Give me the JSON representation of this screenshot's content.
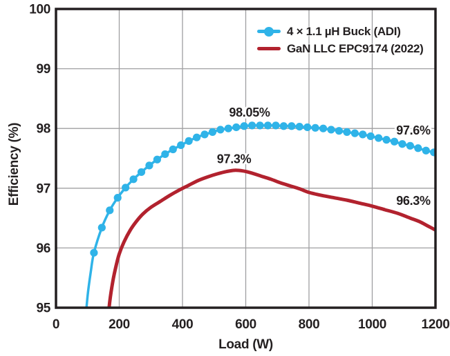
{
  "chart_data": {
    "type": "line",
    "title": "",
    "xlabel": "Load (W)",
    "ylabel": "Efficiency (%)",
    "xlim": [
      0,
      1200
    ],
    "ylim": [
      95,
      100
    ],
    "x_ticks": [
      0,
      200,
      400,
      600,
      800,
      1000,
      1200
    ],
    "y_ticks": [
      95,
      96,
      97,
      98,
      99,
      100
    ],
    "grid": true,
    "grid_color": "#9f9fa1",
    "axis_color": "#231F20",
    "legend_position": "top-right",
    "series": [
      {
        "name": "4 × 1.1 µH Buck (ADI)",
        "color": "#2FB3E8",
        "marker": "circle",
        "marker_size": 5.6,
        "line_width": 3.5,
        "marker_start_index": 3,
        "points": [
          [
            90,
            94.6
          ],
          [
            100,
            95.2
          ],
          [
            110,
            95.6
          ],
          [
            120,
            95.92
          ],
          [
            145,
            96.34
          ],
          [
            170,
            96.63
          ],
          [
            195,
            96.84
          ],
          [
            220,
            97.01
          ],
          [
            245,
            97.15
          ],
          [
            270,
            97.27
          ],
          [
            295,
            97.38
          ],
          [
            320,
            97.48
          ],
          [
            345,
            97.57
          ],
          [
            370,
            97.65
          ],
          [
            395,
            97.72
          ],
          [
            420,
            97.79
          ],
          [
            445,
            97.85
          ],
          [
            470,
            97.9
          ],
          [
            495,
            97.94
          ],
          [
            520,
            97.98
          ],
          [
            545,
            98.0
          ],
          [
            570,
            98.02
          ],
          [
            595,
            98.04
          ],
          [
            620,
            98.05
          ],
          [
            645,
            98.05
          ],
          [
            670,
            98.05
          ],
          [
            695,
            98.05
          ],
          [
            720,
            98.04
          ],
          [
            745,
            98.04
          ],
          [
            770,
            98.03
          ],
          [
            795,
            98.02
          ],
          [
            820,
            98.01
          ],
          [
            845,
            98.0
          ],
          [
            870,
            97.98
          ],
          [
            895,
            97.96
          ],
          [
            920,
            97.94
          ],
          [
            945,
            97.92
          ],
          [
            970,
            97.9
          ],
          [
            995,
            97.87
          ],
          [
            1020,
            97.84
          ],
          [
            1045,
            97.81
          ],
          [
            1070,
            97.78
          ],
          [
            1095,
            97.74
          ],
          [
            1120,
            97.71
          ],
          [
            1145,
            97.67
          ],
          [
            1170,
            97.63
          ],
          [
            1195,
            97.6
          ]
        ]
      },
      {
        "name": "GaN LLC EPC9174 (2022)",
        "color": "#B2222E",
        "marker": "none",
        "line_width": 5,
        "marker_start_index": 0,
        "points": [
          [
            163,
            94.7
          ],
          [
            170,
            95.1
          ],
          [
            180,
            95.45
          ],
          [
            190,
            95.7
          ],
          [
            200,
            95.9
          ],
          [
            215,
            96.1
          ],
          [
            235,
            96.3
          ],
          [
            255,
            96.45
          ],
          [
            275,
            96.57
          ],
          [
            300,
            96.68
          ],
          [
            330,
            96.78
          ],
          [
            360,
            96.88
          ],
          [
            390,
            96.97
          ],
          [
            420,
            97.05
          ],
          [
            450,
            97.13
          ],
          [
            480,
            97.19
          ],
          [
            510,
            97.24
          ],
          [
            540,
            97.28
          ],
          [
            565,
            97.3
          ],
          [
            590,
            97.29
          ],
          [
            615,
            97.26
          ],
          [
            650,
            97.2
          ],
          [
            680,
            97.15
          ],
          [
            710,
            97.09
          ],
          [
            740,
            97.04
          ],
          [
            770,
            96.99
          ],
          [
            800,
            96.93
          ],
          [
            840,
            96.88
          ],
          [
            880,
            96.84
          ],
          [
            920,
            96.8
          ],
          [
            960,
            96.75
          ],
          [
            1000,
            96.7
          ],
          [
            1040,
            96.64
          ],
          [
            1080,
            96.58
          ],
          [
            1120,
            96.5
          ],
          [
            1150,
            96.44
          ],
          [
            1175,
            96.37
          ],
          [
            1200,
            96.3
          ]
        ]
      }
    ],
    "annotations": [
      {
        "text": "98.05%",
        "x": 612,
        "y": 98.27,
        "color": "#2FB3E8"
      },
      {
        "text": "97.6%",
        "x": 1130,
        "y": 97.97,
        "color": "#2FB3E8"
      },
      {
        "text": "97.3%",
        "x": 563,
        "y": 97.49,
        "color": "#A01D48"
      },
      {
        "text": "96.3%",
        "x": 1130,
        "y": 96.79,
        "color": "#A01D48"
      }
    ]
  }
}
